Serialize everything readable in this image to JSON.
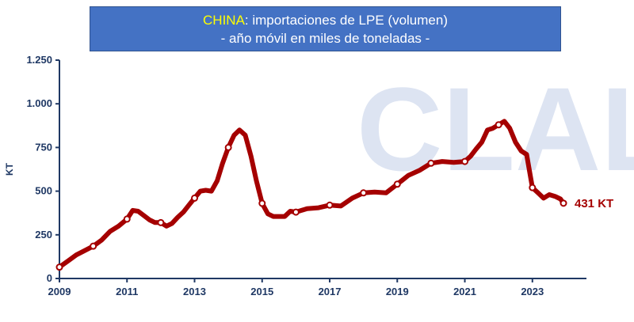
{
  "header": {
    "title_highlight": "CHINA",
    "title_rest": ": importaciones de LPE (volumen)",
    "subtitle": "- año móvil en miles de toneladas -"
  },
  "watermark": "CLAL",
  "colors": {
    "title_bg": "#4472c4",
    "highlight": "#ffff00",
    "series": "#a50000",
    "axis": "#1f3864",
    "watermark": "#dde4f2"
  },
  "chart_data": {
    "type": "line",
    "title": "CHINA: importaciones de LPE (volumen) - año móvil en miles de toneladas -",
    "xlabel": "",
    "ylabel": "KT",
    "xlim": [
      2009,
      2024.6
    ],
    "ylim": [
      0,
      1250
    ],
    "x_ticks": [
      2009,
      2011,
      2013,
      2015,
      2017,
      2019,
      2021,
      2023
    ],
    "x_tick_labels": [
      "2009",
      "2011",
      "2013",
      "2015",
      "2017",
      "2019",
      "2021",
      "2023"
    ],
    "y_ticks": [
      0,
      250,
      500,
      750,
      1000,
      1250
    ],
    "y_tick_labels": [
      "0",
      "250",
      "500",
      "750",
      "1.000",
      "1.250"
    ],
    "grid": false,
    "series": [
      {
        "name": "Importaciones LPE",
        "x": [
          2009.0,
          2009.25,
          2009.5,
          2009.75,
          2010.0,
          2010.25,
          2010.5,
          2010.75,
          2011.0,
          2011.17,
          2011.33,
          2011.5,
          2011.67,
          2011.83,
          2012.0,
          2012.17,
          2012.33,
          2012.5,
          2012.67,
          2012.83,
          2013.0,
          2013.17,
          2013.33,
          2013.5,
          2013.67,
          2013.83,
          2014.0,
          2014.17,
          2014.33,
          2014.5,
          2014.67,
          2014.83,
          2015.0,
          2015.17,
          2015.33,
          2015.5,
          2015.67,
          2015.83,
          2016.0,
          2016.33,
          2016.67,
          2017.0,
          2017.33,
          2017.67,
          2018.0,
          2018.33,
          2018.67,
          2019.0,
          2019.33,
          2019.67,
          2020.0,
          2020.33,
          2020.67,
          2021.0,
          2021.17,
          2021.33,
          2021.5,
          2021.67,
          2021.83,
          2022.0,
          2022.17,
          2022.33,
          2022.5,
          2022.67,
          2022.83,
          2023.0,
          2023.17,
          2023.33,
          2023.5,
          2023.67,
          2023.83,
          2023.92
        ],
        "values": [
          65,
          100,
          135,
          160,
          185,
          220,
          270,
          300,
          340,
          390,
          385,
          360,
          335,
          320,
          320,
          300,
          315,
          350,
          380,
          420,
          460,
          500,
          505,
          500,
          560,
          660,
          750,
          820,
          850,
          820,
          700,
          560,
          430,
          370,
          355,
          355,
          355,
          385,
          380,
          400,
          405,
          420,
          415,
          460,
          490,
          495,
          490,
          540,
          590,
          620,
          660,
          670,
          665,
          670,
          700,
          740,
          780,
          850,
          860,
          880,
          900,
          860,
          780,
          730,
          710,
          520,
          490,
          460,
          480,
          470,
          455,
          431
        ]
      }
    ],
    "end_label": "431 KT"
  }
}
